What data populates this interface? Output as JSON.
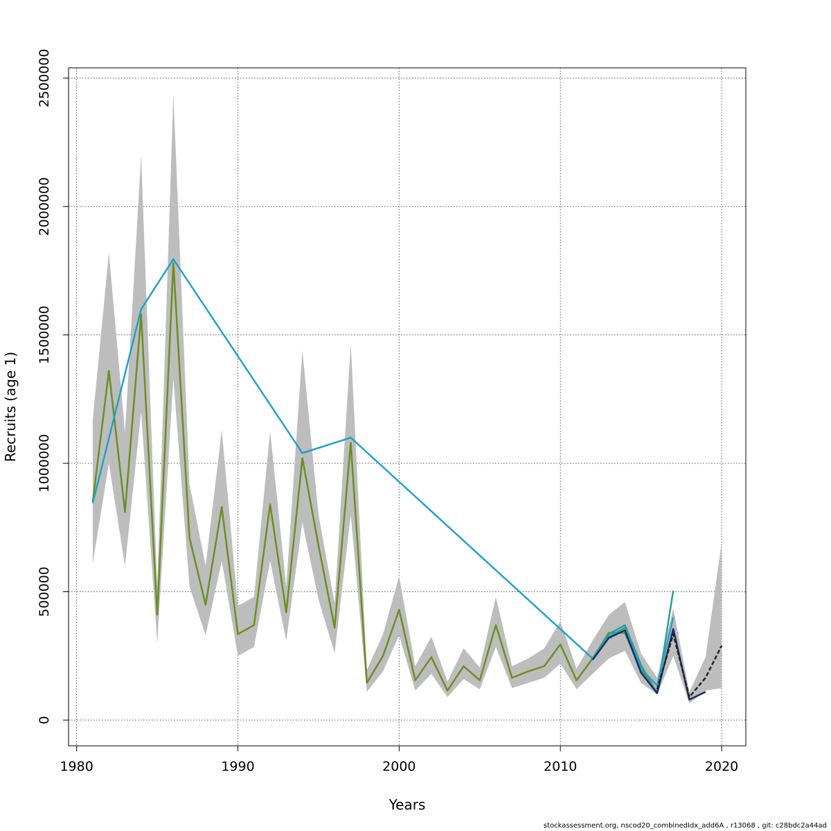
{
  "chart_data": {
    "type": "line",
    "title": "",
    "xlabel": "Years",
    "ylabel": "Recruits (age 1)",
    "xlim": [
      1979.5,
      2021.5
    ],
    "ylim": [
      -100000,
      2540000
    ],
    "xticks": [
      "1980",
      "1990",
      "2000",
      "2010",
      "2020"
    ],
    "yticks": [
      "0",
      "500000",
      "1000000",
      "1500000",
      "2000000",
      "2500000"
    ],
    "grid": true,
    "legend": "none",
    "band": {
      "x": [
        1981,
        1982,
        1983,
        1984,
        1985,
        1986,
        1987,
        1988,
        1989,
        1990,
        1991,
        1992,
        1993,
        1994,
        1995,
        1996,
        1997,
        1998,
        1999,
        2000,
        2001,
        2002,
        2003,
        2004,
        2005,
        2006,
        2007,
        2008,
        2009,
        2010,
        2011,
        2012,
        2013,
        2014,
        2015,
        2016,
        2017,
        2018,
        2019,
        2020
      ],
      "low": [
        610000,
        1000000,
        600000,
        1200000,
        300000,
        1330000,
        520000,
        330000,
        620000,
        250000,
        285000,
        620000,
        310000,
        770000,
        470000,
        260000,
        800000,
        110000,
        190000,
        330000,
        115000,
        180000,
        90000,
        160000,
        120000,
        285000,
        125000,
        145000,
        165000,
        220000,
        120000,
        180000,
        240000,
        270000,
        145000,
        100000,
        250000,
        65000,
        115000,
        125000
      ],
      "high": [
        1170000,
        1820000,
        1120000,
        2200000,
        520000,
        2440000,
        920000,
        600000,
        1130000,
        445000,
        480000,
        1125000,
        520000,
        1440000,
        800000,
        455000,
        1465000,
        195000,
        335000,
        560000,
        210000,
        325000,
        150000,
        280000,
        205000,
        480000,
        210000,
        240000,
        280000,
        385000,
        200000,
        310000,
        410000,
        460000,
        260000,
        165000,
        435000,
        110000,
        245000,
        690000
      ]
    },
    "series": [
      {
        "color": "#6b8e23",
        "x": [
          1981,
          1982,
          1983,
          1984,
          1985,
          1986,
          1987,
          1988,
          1989,
          1990,
          1991,
          1992,
          1993,
          1994,
          1995,
          1996,
          1997,
          1998,
          1999,
          2000,
          2001,
          2002,
          2003,
          2004,
          2005,
          2006,
          2007,
          2008,
          2009,
          2010,
          2011,
          2012,
          2013,
          2014,
          2015,
          2016
        ],
        "values": [
          850000,
          1360000,
          810000,
          1580000,
          410000,
          1780000,
          710000,
          450000,
          830000,
          335000,
          370000,
          840000,
          420000,
          1020000,
          680000,
          360000,
          1080000,
          145000,
          250000,
          430000,
          155000,
          245000,
          115000,
          210000,
          155000,
          370000,
          165000,
          190000,
          210000,
          295000,
          155000,
          240000,
          340000,
          340000,
          195000,
          105000
        ]
      },
      {
        "color": "#2ca089",
        "x": [
          2012,
          2013,
          2014,
          2015,
          2016,
          2017
        ],
        "values": [
          240000,
          335000,
          370000,
          215000,
          105000,
          505000
        ]
      },
      {
        "color": "#20a2c8",
        "x": [
          1981,
          1984,
          1986,
          1994,
          1997,
          2012,
          2013,
          2014,
          2015,
          2016,
          2017
        ],
        "values": [
          845000,
          1600000,
          1795000,
          1040000,
          1100000,
          240000,
          325000,
          360000,
          200000,
          135000,
          400000
        ]
      },
      {
        "color": "#1b2a6b",
        "x": [
          2012,
          2013,
          2014,
          2015,
          2016,
          2017,
          2018,
          2019
        ],
        "values": [
          235000,
          320000,
          350000,
          185000,
          105000,
          355000,
          80000,
          110000
        ]
      },
      {
        "color": "#222222",
        "dashed": true,
        "x": [
          2016,
          2017,
          2018,
          2019,
          2020
        ],
        "values": [
          120000,
          335000,
          90000,
          165000,
          290000
        ]
      }
    ]
  },
  "footer": "stockassessment.org, nscod20_combinedIdx_add6A , r13068 , git: c28bdc2a44ad"
}
